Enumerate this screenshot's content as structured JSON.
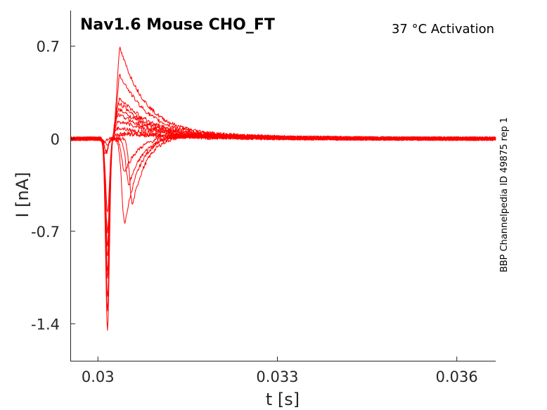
{
  "chart_data": {
    "type": "line",
    "title": "Nav1.6  Mouse  CHO_FT",
    "subtitle": "37 °C  Activation",
    "side_note": "BBP Channelpedia ID 49875 rep 1",
    "xlabel": "t [s]",
    "ylabel": "I [nA]",
    "xlim": [
      0.02955,
      0.03665
    ],
    "ylim": [
      -1.68,
      0.97
    ],
    "x_ticks": [
      {
        "value": 0.03,
        "label": "0.03"
      },
      {
        "value": 0.033,
        "label": "0.033"
      },
      {
        "value": 0.036,
        "label": "0.036"
      }
    ],
    "y_ticks": [
      {
        "value": 0.7,
        "label": "0.7"
      },
      {
        "value": 0,
        "label": "0"
      },
      {
        "value": -0.7,
        "label": "-0.7"
      },
      {
        "value": -1.4,
        "label": "-1.4"
      }
    ],
    "line_color": "#ff0000",
    "grid": false,
    "sweep_params": {
      "baseline_start": 0.02955,
      "step_start": 0.03,
      "end": 0.03665,
      "sweeps": [
        {
          "trough_x": 0.03012,
          "trough": -0.02,
          "peak_x": 0.0303,
          "peak": 0.02,
          "tail": 0.05
        },
        {
          "trough_x": 0.03013,
          "trough": -0.12,
          "peak_x": 0.03045,
          "peak": -0.65,
          "tail": 0.1
        },
        {
          "trough_x": 0.03014,
          "trough": -0.1,
          "peak_x": 0.03058,
          "peak": -0.5,
          "tail": 0.08
        },
        {
          "trough_x": 0.03014,
          "trough": -0.1,
          "peak_x": 0.03052,
          "peak": -0.35,
          "tail": 0.06
        },
        {
          "trough_x": 0.03015,
          "trough": -0.05,
          "peak_x": 0.03045,
          "peak": -0.25,
          "tail": 0.05
        },
        {
          "trough_x": 0.03016,
          "trough": -0.8,
          "peak_x": 0.03037,
          "peak": 0.68,
          "tail": 0.12
        },
        {
          "trough_x": 0.03016,
          "trough": -1.0,
          "peak_x": 0.03037,
          "peak": 0.48,
          "tail": 0.11
        },
        {
          "trough_x": 0.03016,
          "trough": -1.2,
          "peak_x": 0.03036,
          "peak": 0.3,
          "tail": 0.1
        },
        {
          "trough_x": 0.03016,
          "trough": -1.45,
          "peak_x": 0.03035,
          "peak": 0.27,
          "tail": 0.09
        },
        {
          "trough_x": 0.03016,
          "trough": -1.3,
          "peak_x": 0.03035,
          "peak": 0.22,
          "tail": 0.08
        },
        {
          "trough_x": 0.03016,
          "trough": -1.05,
          "peak_x": 0.03034,
          "peak": 0.18,
          "tail": 0.07
        },
        {
          "trough_x": 0.03016,
          "trough": -0.9,
          "peak_x": 0.03034,
          "peak": 0.13,
          "tail": 0.06
        },
        {
          "trough_x": 0.03016,
          "trough": -0.7,
          "peak_x": 0.03033,
          "peak": 0.08,
          "tail": 0.04
        },
        {
          "trough_x": 0.03016,
          "trough": -0.55,
          "peak_x": 0.03033,
          "peak": 0.03,
          "tail": 0.03
        }
      ]
    }
  }
}
